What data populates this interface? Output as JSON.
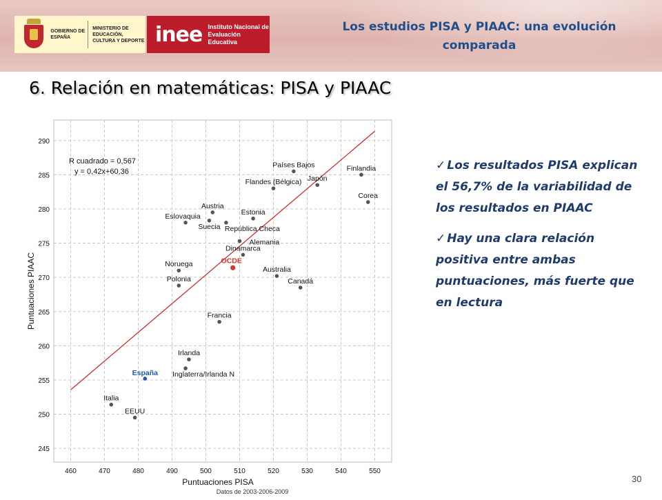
{
  "header": {
    "gov_logo_line1": "GOBIERNO DE ESPAÑA",
    "gov_logo_line2": "MINISTERIO DE EDUCACIÓN, CULTURA Y DEPORTE",
    "inee_word": "inee",
    "inee_sub": "Instituto Nacional de Evaluación Educativa",
    "title": "Los estudios PISA y PIAAC: una evolución comparada"
  },
  "slide": {
    "title": "6. Relación en matemáticas: PISA y PIAAC",
    "page_number": "30"
  },
  "bullets": [
    "Los resultados PISA explican el 56,7% de la variabilidad de los resultados en PIAAC",
    "Hay una clara relación positiva entre ambas puntuaciones, más fuerte que en lectura"
  ],
  "colors": {
    "point": "#555555",
    "highlight_spain": "#1f5aa6",
    "highlight_oecd": "#d0392b",
    "trend_line": "#d42020",
    "grid": "#c8c8c8",
    "bullet_text": "#1f3a6b",
    "header_title": "#1f4f8a"
  },
  "chart_data": {
    "type": "scatter",
    "xlabel": "Puntuaciones PISA",
    "ylabel": "Puntuaciones PIAAC",
    "source_note": "Datos de 2003-2006-2009",
    "xlim": [
      455,
      555
    ],
    "ylim": [
      243,
      293
    ],
    "xticks": [
      460,
      470,
      480,
      490,
      500,
      510,
      520,
      530,
      540,
      550
    ],
    "yticks": [
      245,
      250,
      255,
      260,
      265,
      270,
      275,
      280,
      285,
      290
    ],
    "grid": true,
    "annotation": [
      "R cuadrado = 0,567",
      "y = 0,42x+60,36"
    ],
    "trendline": {
      "slope": 0.42,
      "intercept": 60.36,
      "x_range": [
        460,
        550
      ]
    },
    "points": [
      {
        "label": "Países Bajos",
        "x": 526,
        "y": 285.5
      },
      {
        "label": "Finlandia",
        "x": 546,
        "y": 285
      },
      {
        "label": "Flandes (Bélgica)",
        "x": 520,
        "y": 283
      },
      {
        "label": "Japón",
        "x": 533,
        "y": 283.5
      },
      {
        "label": "Corea",
        "x": 548,
        "y": 281
      },
      {
        "label": "Austria",
        "x": 502,
        "y": 279.5
      },
      {
        "label": "Eslovaquia",
        "x": 494,
        "y": 278
      },
      {
        "label": "Suecia",
        "x": 501,
        "y": 278.3
      },
      {
        "label": "Estonia",
        "x": 514,
        "y": 278.6
      },
      {
        "label": "República Checa",
        "x": 506,
        "y": 278
      },
      {
        "label": "Alemania",
        "x": 510,
        "y": 275.3
      },
      {
        "label": "Dinamarca",
        "x": 511,
        "y": 273.3
      },
      {
        "label": "Noruega",
        "x": 492,
        "y": 271
      },
      {
        "label": "OCDE",
        "x": 508,
        "y": 271.4
      },
      {
        "label": "Australia",
        "x": 521,
        "y": 270.2
      },
      {
        "label": "Polonia",
        "x": 492,
        "y": 268.8
      },
      {
        "label": "Canadá",
        "x": 528,
        "y": 268.5
      },
      {
        "label": "Francia",
        "x": 504,
        "y": 263.5
      },
      {
        "label": "Irlanda",
        "x": 495,
        "y": 258
      },
      {
        "label": "Inglaterra/Irlanda N",
        "x": 494,
        "y": 256.7
      },
      {
        "label": "España",
        "x": 482,
        "y": 255.2
      },
      {
        "label": "Italia",
        "x": 472,
        "y": 251.4
      },
      {
        "label": "EEUU",
        "x": 479,
        "y": 249.5
      }
    ]
  }
}
